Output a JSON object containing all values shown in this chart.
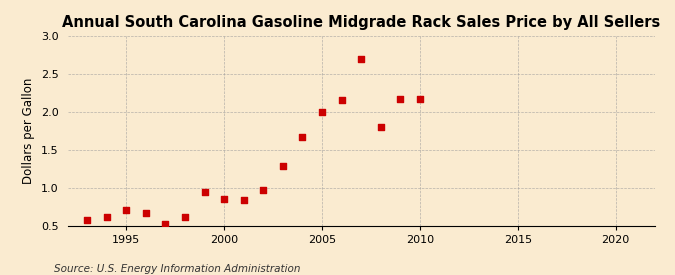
{
  "title": "Annual South Carolina Gasoline Midgrade Rack Sales Price by All Sellers",
  "ylabel": "Dollars per Gallon",
  "source": "Source: U.S. Energy Information Administration",
  "years": [
    1993,
    1994,
    1995,
    1996,
    1997,
    1998,
    1999,
    2000,
    2001,
    2002,
    2003,
    2004,
    2005,
    2006,
    2007,
    2008,
    2009,
    2010
  ],
  "values": [
    0.57,
    0.61,
    0.7,
    0.67,
    0.52,
    0.61,
    0.94,
    0.85,
    0.83,
    0.97,
    1.28,
    1.67,
    1.99,
    2.16,
    2.7,
    1.8,
    2.17,
    2.17
  ],
  "marker_color": "#cc0000",
  "marker_size": 18,
  "background_color": "#faebd0",
  "grid_color": "#999999",
  "xlim": [
    1992,
    2022
  ],
  "ylim": [
    0.5,
    3.0
  ],
  "yticks": [
    0.5,
    1.0,
    1.5,
    2.0,
    2.5,
    3.0
  ],
  "xticks": [
    1995,
    2000,
    2005,
    2010,
    2015,
    2020
  ],
  "title_fontsize": 10.5,
  "label_fontsize": 8.5,
  "tick_fontsize": 8,
  "source_fontsize": 7.5
}
